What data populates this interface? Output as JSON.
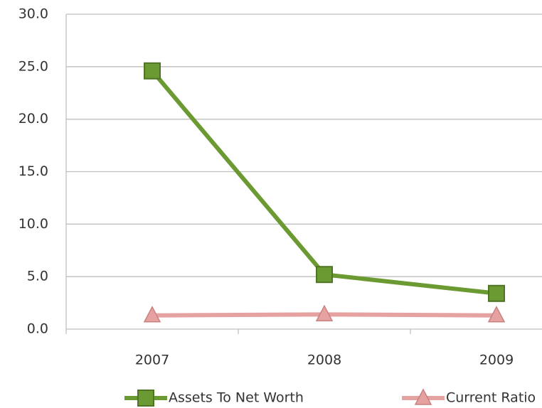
{
  "chart_data": {
    "type": "line",
    "categories": [
      "2007",
      "2008",
      "2009"
    ],
    "series": [
      {
        "name": "Assets To Net Worth",
        "color": "#6b9a32",
        "marker": "square",
        "values": [
          24.6,
          5.2,
          3.4
        ]
      },
      {
        "name": "Current Ratio",
        "color": "#e6a1a1",
        "marker": "triangle",
        "values": [
          1.3,
          1.4,
          1.3
        ]
      }
    ],
    "ylim": [
      0,
      30
    ],
    "yticks": [
      {
        "value": 0,
        "label": "0.0"
      },
      {
        "value": 5,
        "label": "5.0"
      },
      {
        "value": 10,
        "label": "10.0"
      },
      {
        "value": 15,
        "label": "15.0"
      },
      {
        "value": 20,
        "label": "20.0"
      },
      {
        "value": 25,
        "label": "25.0"
      },
      {
        "value": 30,
        "label": "30.0"
      }
    ],
    "grid": true,
    "legend": "bottom"
  }
}
